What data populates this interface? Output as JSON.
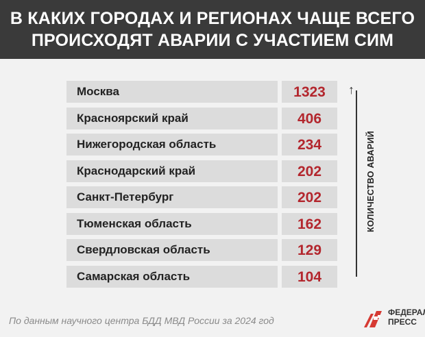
{
  "header": {
    "title_line1": "В КАКИХ ГОРОДАХ И РЕГИОНАХ ЧАЩЕ ВСЕГО",
    "title_line2": "ПРОИСХОДЯТ АВАРИИ С УЧАСТИЕМ СИМ"
  },
  "chart_data": {
    "type": "table",
    "title": "В КАКИХ ГОРОДАХ И РЕГИОНАХ ЧАЩЕ ВСЕГО ПРОИСХОДЯТ АВАРИИ С УЧАСТИЕМ СИМ",
    "value_label": "КОЛИЧЕСТВО АВАРИЙ",
    "categories": [
      "Москва",
      "Красноярский край",
      "Нижегородская область",
      "Краснодарский край",
      "Санкт-Петербург",
      "Тюменская область",
      "Свердловская область",
      "Самарская область"
    ],
    "values": [
      1323,
      406,
      234,
      202,
      202,
      162,
      129,
      104
    ]
  },
  "source": "По данным научного центра БДД МВД России за 2024 год",
  "logo": {
    "line1": "ФЕДЕРАЛ",
    "line2": "ПРЕСС"
  },
  "colors": {
    "header_bg": "#3a3a3a",
    "value_text": "#b3262d",
    "row_bg": "#dcdcdc",
    "logo_red": "#d63a33"
  }
}
